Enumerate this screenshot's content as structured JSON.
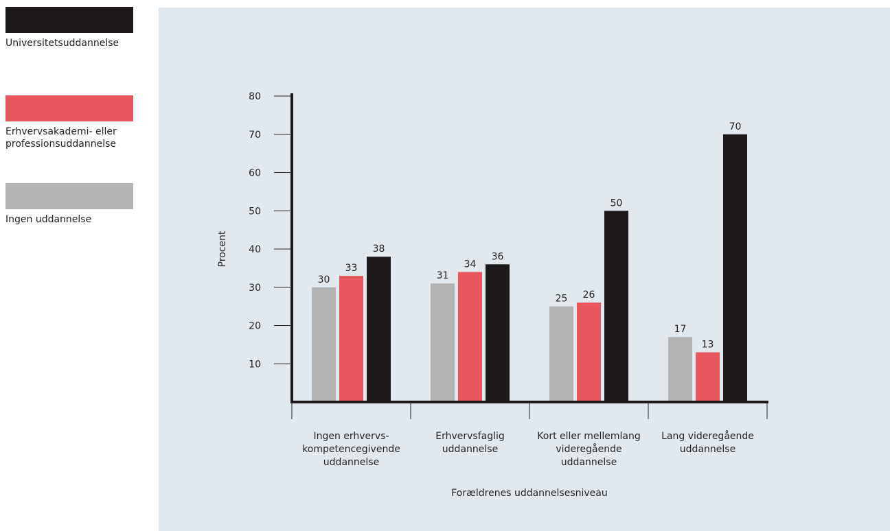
{
  "legend": [
    {
      "label": "Universitetsuddannelse",
      "color": "#1e1a1b"
    },
    {
      "label": "Erhvervsakademi- eller\nprofessionsuddannelse",
      "color": "#e8575d"
    },
    {
      "label": "Ingen uddannelse",
      "color": "#b3b3b3"
    }
  ],
  "chart_data": {
    "type": "bar",
    "xlabel": "Forældrenes uddannelsesniveau",
    "ylabel": "Procent",
    "ylim": [
      0,
      80
    ],
    "yticks": [
      10,
      20,
      30,
      40,
      50,
      60,
      70,
      80
    ],
    "grid": false,
    "legend_position": "left",
    "categories": [
      "Ingen erhvervs-\nkompetencegivende\nuddannelse",
      "Erhvervsfaglig\nuddannelse",
      "Kort eller mellemlang\nvideregående\nuddannelse",
      "Lang videregående\nuddannelse"
    ],
    "series": [
      {
        "name": "Ingen uddannelse",
        "color": "#b3b3b3",
        "values": [
          30,
          31,
          25,
          17
        ]
      },
      {
        "name": "Erhvervsakademi- eller professionsuddannelse",
        "color": "#e8575d",
        "values": [
          33,
          34,
          26,
          13
        ]
      },
      {
        "name": "Universitetsuddannelse",
        "color": "#1e1a1b",
        "values": [
          38,
          36,
          50,
          70
        ]
      }
    ]
  }
}
